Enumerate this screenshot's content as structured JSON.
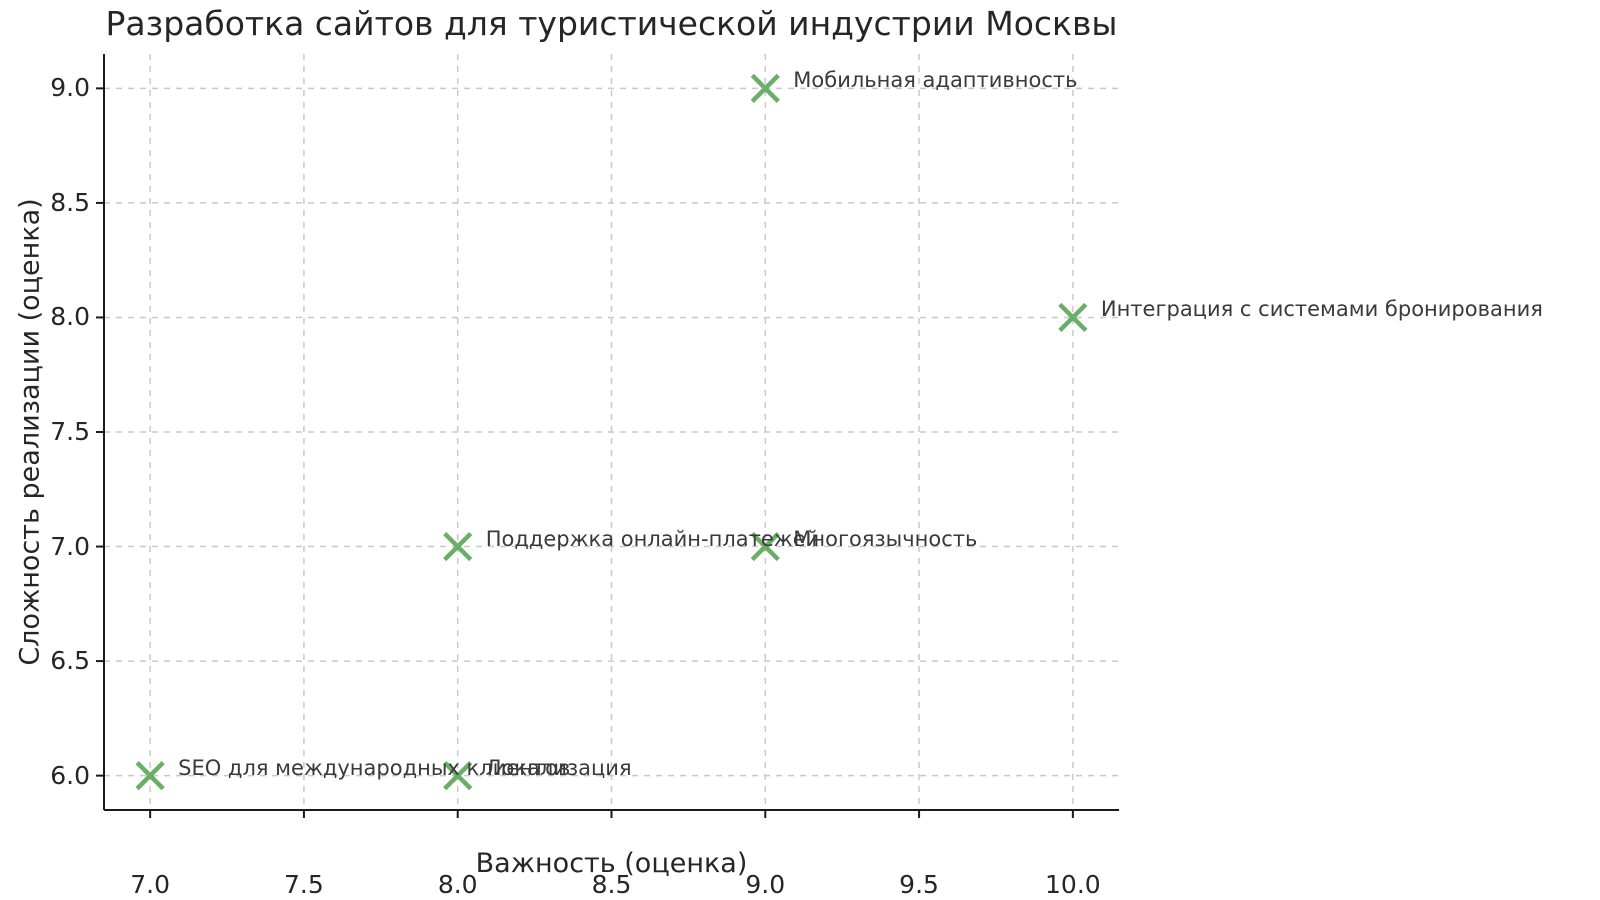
{
  "figure": {
    "title": "Разработка сайтов для туристической индустрии Москвы"
  },
  "chart_data": {
    "type": "scatter",
    "title": "Разработка сайтов для туристической индустрии Москвы",
    "xlabel": "Важность (оценка)",
    "ylabel": "Сложность реализации (оценка)",
    "xlim": [
      6.85,
      10.15
    ],
    "ylim": [
      5.85,
      9.15
    ],
    "xticks": [
      "7.0",
      "7.5",
      "8.0",
      "8.5",
      "9.0",
      "9.5",
      "10.0"
    ],
    "yticks": [
      "6.0",
      "6.5",
      "7.0",
      "7.5",
      "8.0",
      "8.5",
      "9.0"
    ],
    "grid": true,
    "grid_style": "dashed",
    "legend": false,
    "marker": "x",
    "colors": {
      "marker": "#6aae68",
      "grid": "#c9c9c9",
      "spine": "#1a1a1a",
      "tick_text": "#262626",
      "annotation_text": "#3a3a3a"
    },
    "points": [
      {
        "label": "Мобильная адаптивность",
        "x": 9,
        "y": 9
      },
      {
        "label": "Интеграция с системами бронирования",
        "x": 10,
        "y": 8
      },
      {
        "label": "Поддержка онлайн-платежей",
        "x": 8,
        "y": 7
      },
      {
        "label": "Многоязычность",
        "x": 9,
        "y": 7
      },
      {
        "label": "SEO для международных клиентов",
        "x": 7,
        "y": 6
      },
      {
        "label": "Локализация",
        "x": 8,
        "y": 6
      }
    ]
  }
}
